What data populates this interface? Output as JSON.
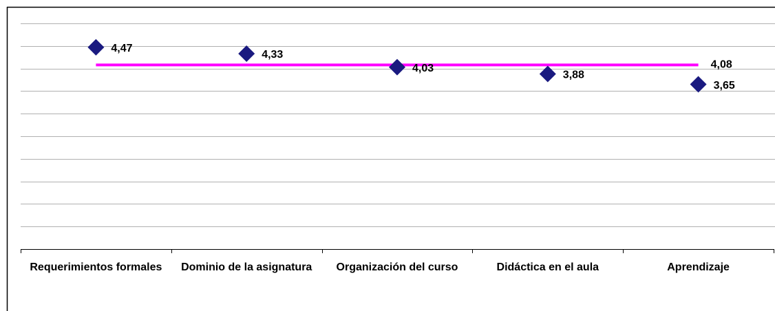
{
  "chart_data": {
    "type": "scatter",
    "categories": [
      "Requerimientos formales",
      "Dominio de la asignatura",
      "Organización del curso",
      "Didáctica en el aula",
      "Aprendizaje"
    ],
    "series": [
      {
        "color": "#1a1a80",
        "values": [
          4.47,
          4.33,
          4.03,
          3.88,
          3.65
        ],
        "value_labels": [
          "4,47",
          "4,33",
          "4,03",
          "3,88",
          "3,65"
        ]
      }
    ],
    "reference_line": {
      "value": 4.08,
      "value_label": "4,08",
      "color": "#ff00ff"
    },
    "ylim": [
      0,
      5
    ],
    "yticks": [
      0.5,
      1,
      1.5,
      2,
      2.5,
      3,
      3.5,
      4,
      4.5,
      5
    ],
    "grid": true
  }
}
